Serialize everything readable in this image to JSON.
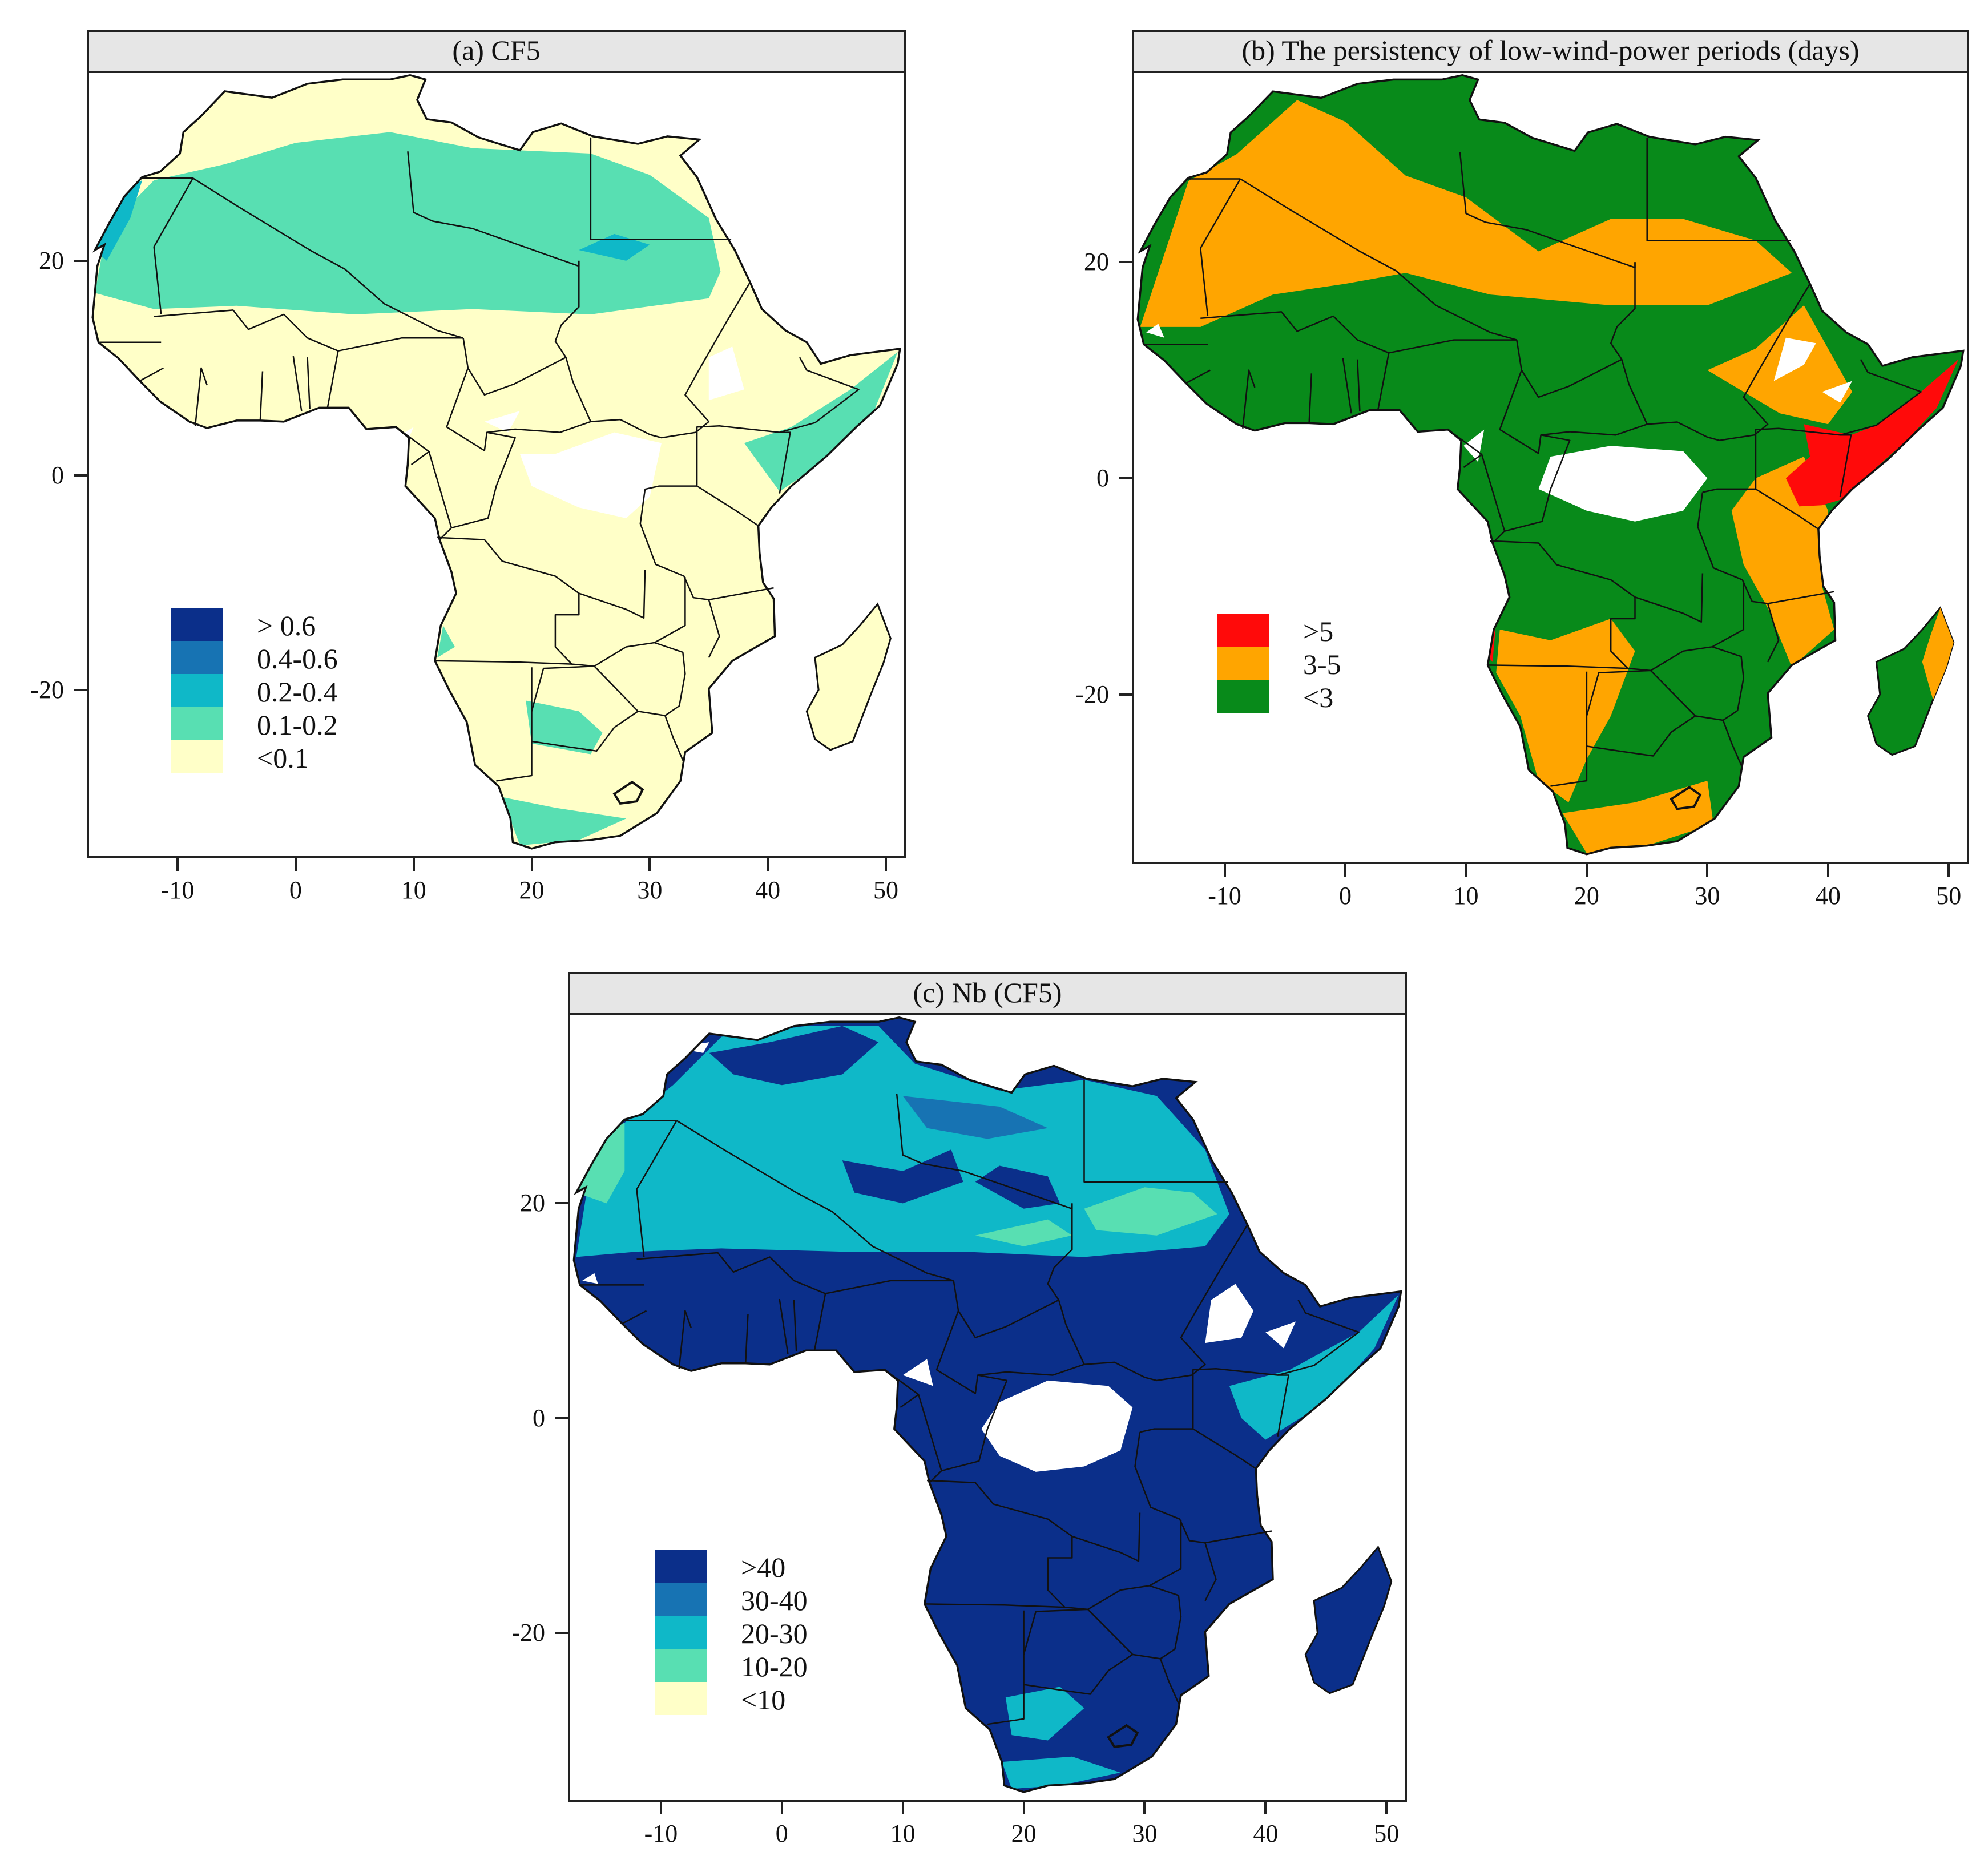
{
  "colors": {
    "cf_gt06": "#0b2f8a",
    "cf_04_06": "#1773b3",
    "cf_02_04": "#0fb8c8",
    "cf_01_02": "#58dfb2",
    "cf_lt01": "#ffffc8",
    "pers_gt5": "#ff0a0a",
    "pers_3_5": "#ffa500",
    "pers_lt3": "#088a1a",
    "nodata": "#ffffff",
    "border": "#111111",
    "strip": "#e6e6e6"
  },
  "axes": {
    "x_ticks": [
      "-10",
      "0",
      "10",
      "20",
      "30",
      "40",
      "50"
    ],
    "y_ticks": [
      "20",
      "0",
      "-20"
    ],
    "xlim": [
      -17.5,
      51.5
    ],
    "ylim": [
      -35.5,
      37.5
    ]
  },
  "panels": [
    {
      "id": "a",
      "title": "(a) CF5",
      "legend": [
        {
          "label": "> 0.6",
          "color": "#0b2f8a"
        },
        {
          "label": "0.4-0.6",
          "color": "#1773b3"
        },
        {
          "label": "0.2-0.4",
          "color": "#0fb8c8"
        },
        {
          "label": "0.1-0.2",
          "color": "#58dfb2"
        },
        {
          "label": "<0.1",
          "color": "#ffffc8"
        }
      ]
    },
    {
      "id": "b",
      "title": "(b) The persistency of low-wind-power periods (days)",
      "legend": [
        {
          "label": ">5",
          "color": "#ff0a0a"
        },
        {
          "label": "3-5",
          "color": "#ffa500"
        },
        {
          "label": "<3",
          "color": "#088a1a"
        }
      ]
    },
    {
      "id": "c",
      "title": "(c) Nb (CF5)",
      "legend": [
        {
          "label": ">40",
          "color": "#0b2f8a"
        },
        {
          "label": "30-40",
          "color": "#1773b3"
        },
        {
          "label": "20-30",
          "color": "#0fb8c8"
        },
        {
          "label": "10-20",
          "color": "#58dfb2"
        },
        {
          "label": "<10",
          "color": "#ffffc8"
        }
      ]
    }
  ]
}
